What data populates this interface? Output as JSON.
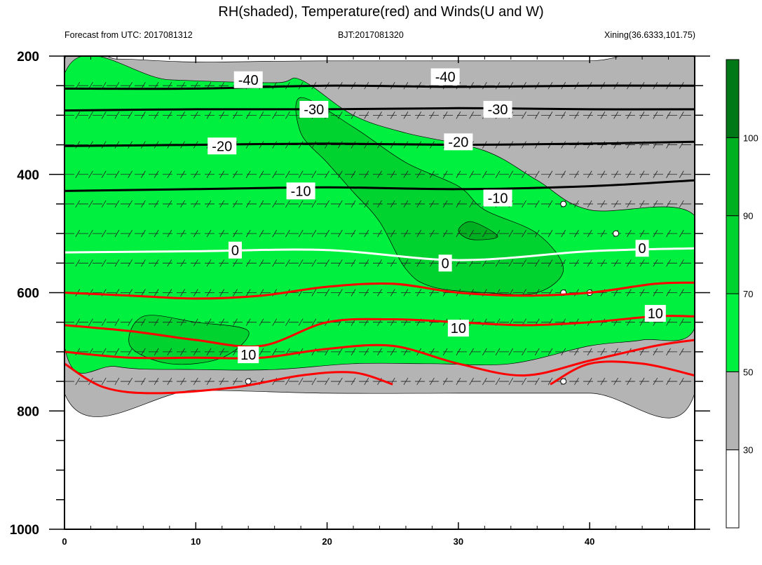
{
  "title": "RH(shaded), Temperature(red) and Winds(U and W)",
  "subtitle_left": "Forecast from UTC: 2017081312",
  "subtitle_center": "BJT:2017081320",
  "subtitle_right": "Xining(36.6333,101.75)",
  "chart_data": {
    "type": "heatmap",
    "title": "RH(shaded), Temperature(red) and Winds(U and W)",
    "xlim": [
      0,
      48
    ],
    "ylim": [
      1000,
      200
    ],
    "x_ticks": [
      0,
      10,
      20,
      30,
      40
    ],
    "y_ticks": [
      200,
      400,
      600,
      800,
      1000
    ],
    "y_reversed": true,
    "colorbar": {
      "levels": [
        30,
        50,
        70,
        90,
        100
      ],
      "colors": [
        "#ffffff",
        "#b4b4b4",
        "#00f040",
        "#00d230",
        "#00b020",
        "#007818"
      ],
      "labels": [
        "30",
        "50",
        "70",
        "90",
        "100"
      ]
    },
    "rh_regions": [
      {
        "level": "30-50",
        "color": "#b4b4b4",
        "boundary": [
          [
            0,
            210
          ],
          [
            4,
            205
          ],
          [
            10,
            210
          ],
          [
            20,
            208
          ],
          [
            40,
            208
          ],
          [
            48,
            205
          ],
          [
            48,
            770
          ],
          [
            40,
            770
          ],
          [
            30,
            770
          ],
          [
            20,
            770
          ],
          [
            10,
            765
          ],
          [
            0,
            770
          ]
        ]
      },
      {
        "level": "50-70",
        "color": "#00f040",
        "boundary": [
          [
            0,
            230
          ],
          [
            8,
            240
          ],
          [
            16,
            245
          ],
          [
            18,
            240
          ],
          [
            22,
            300
          ],
          [
            26,
            330
          ],
          [
            32,
            360
          ],
          [
            36,
            410
          ],
          [
            40,
            460
          ],
          [
            48,
            470
          ],
          [
            48,
            660
          ],
          [
            44,
            680
          ],
          [
            40,
            690
          ],
          [
            34,
            720
          ],
          [
            28,
            720
          ],
          [
            22,
            720
          ],
          [
            16,
            730
          ],
          [
            10,
            730
          ],
          [
            4,
            725
          ],
          [
            0,
            690
          ]
        ]
      },
      {
        "level": "70-90",
        "color": "#00d230",
        "boundary": [
          [
            18,
            270
          ],
          [
            22,
            320
          ],
          [
            26,
            380
          ],
          [
            30,
            420
          ],
          [
            32,
            460
          ],
          [
            36,
            500
          ],
          [
            38,
            560
          ],
          [
            36,
            600
          ],
          [
            32,
            600
          ],
          [
            28,
            590
          ],
          [
            26,
            560
          ],
          [
            24,
            480
          ],
          [
            22,
            430
          ],
          [
            20,
            380
          ],
          [
            18,
            330
          ]
        ]
      },
      {
        "level": "70-90",
        "color": "#00d230",
        "boundary": [
          [
            6,
            640
          ],
          [
            10,
            650
          ],
          [
            14,
            665
          ],
          [
            12,
            710
          ],
          [
            8,
            720
          ],
          [
            5,
            690
          ]
        ]
      },
      {
        "level": "90-100",
        "color": "#00b020",
        "boundary": [
          [
            31,
            480
          ],
          [
            33,
            505
          ],
          [
            31,
            510
          ],
          [
            30,
            495
          ]
        ]
      }
    ],
    "temperature_isotherms": [
      {
        "label": "-40",
        "color": "#000000",
        "points": [
          [
            0,
            255
          ],
          [
            10,
            255
          ],
          [
            20,
            250
          ],
          [
            30,
            252
          ],
          [
            40,
            250
          ],
          [
            48,
            250
          ]
        ]
      },
      {
        "label": "-30",
        "color": "#000000",
        "points": [
          [
            0,
            292
          ],
          [
            10,
            290
          ],
          [
            20,
            290
          ],
          [
            30,
            288
          ],
          [
            40,
            290
          ],
          [
            48,
            290
          ]
        ]
      },
      {
        "label": "-20",
        "color": "#000000",
        "points": [
          [
            0,
            352
          ],
          [
            10,
            350
          ],
          [
            20,
            348
          ],
          [
            30,
            350
          ],
          [
            40,
            348
          ],
          [
            48,
            345
          ]
        ]
      },
      {
        "label": "-10",
        "color": "#000000",
        "points": [
          [
            0,
            428
          ],
          [
            10,
            425
          ],
          [
            20,
            422
          ],
          [
            30,
            425
          ],
          [
            40,
            420
          ],
          [
            48,
            410
          ]
        ]
      },
      {
        "label": "0",
        "color": "#ffffff",
        "points": [
          [
            0,
            532
          ],
          [
            10,
            530
          ],
          [
            20,
            528
          ],
          [
            30,
            545
          ],
          [
            40,
            530
          ],
          [
            48,
            525
          ]
        ]
      },
      {
        "label": "10",
        "color": "#ff0000",
        "points": [
          [
            0,
            600
          ],
          [
            5,
            605
          ],
          [
            10,
            610
          ],
          [
            15,
            605
          ],
          [
            20,
            590
          ],
          [
            25,
            585
          ],
          [
            30,
            600
          ],
          [
            35,
            605
          ],
          [
            40,
            600
          ],
          [
            45,
            585
          ],
          [
            48,
            583
          ]
        ]
      },
      {
        "label": "10",
        "color": "#ff0000",
        "points": [
          [
            0,
            655
          ],
          [
            5,
            665
          ],
          [
            10,
            680
          ],
          [
            15,
            690
          ],
          [
            20,
            650
          ],
          [
            25,
            645
          ],
          [
            30,
            650
          ],
          [
            35,
            655
          ],
          [
            40,
            650
          ],
          [
            45,
            640
          ],
          [
            48,
            640
          ]
        ]
      },
      {
        "label": "",
        "color": "#ff0000",
        "points": [
          [
            0,
            700
          ],
          [
            5,
            710
          ],
          [
            10,
            710
          ],
          [
            15,
            710
          ],
          [
            20,
            695
          ],
          [
            25,
            690
          ],
          [
            30,
            720
          ],
          [
            35,
            740
          ],
          [
            40,
            715
          ],
          [
            45,
            690
          ],
          [
            48,
            680
          ]
        ]
      },
      {
        "label": "",
        "color": "#ff0000",
        "points": [
          [
            0,
            720
          ],
          [
            3,
            760
          ],
          [
            7,
            770
          ],
          [
            13,
            760
          ],
          [
            18,
            740
          ],
          [
            22,
            735
          ],
          [
            25,
            755
          ]
        ]
      },
      {
        "label": "",
        "color": "#ff0000",
        "points": [
          [
            37,
            755
          ],
          [
            40,
            720
          ],
          [
            44,
            720
          ],
          [
            48,
            740
          ]
        ]
      }
    ],
    "contour_labels": [
      {
        "text": "-40",
        "x": 14,
        "y": 240
      },
      {
        "text": "-40",
        "x": 29,
        "y": 235
      },
      {
        "text": "-30",
        "x": 19,
        "y": 290
      },
      {
        "text": "-30",
        "x": 33,
        "y": 290
      },
      {
        "text": "-20",
        "x": 12,
        "y": 352
      },
      {
        "text": "-20",
        "x": 30,
        "y": 345
      },
      {
        "text": "-10",
        "x": 18,
        "y": 428
      },
      {
        "text": "-10",
        "x": 33,
        "y": 440
      },
      {
        "text": "0",
        "x": 13,
        "y": 528
      },
      {
        "text": "0",
        "x": 29,
        "y": 550
      },
      {
        "text": "0",
        "x": 44,
        "y": 525
      },
      {
        "text": "10",
        "x": 14,
        "y": 705
      },
      {
        "text": "10",
        "x": 30,
        "y": 660
      },
      {
        "text": "10",
        "x": 45,
        "y": 635
      }
    ],
    "wind_rows": [
      250,
      300,
      350,
      400,
      450,
      500,
      550,
      600,
      650,
      700,
      750
    ],
    "calm_points": [
      [
        38,
        450
      ],
      [
        42,
        500
      ],
      [
        38,
        600
      ],
      [
        40,
        600
      ],
      [
        14,
        750
      ],
      [
        38,
        750
      ]
    ]
  }
}
